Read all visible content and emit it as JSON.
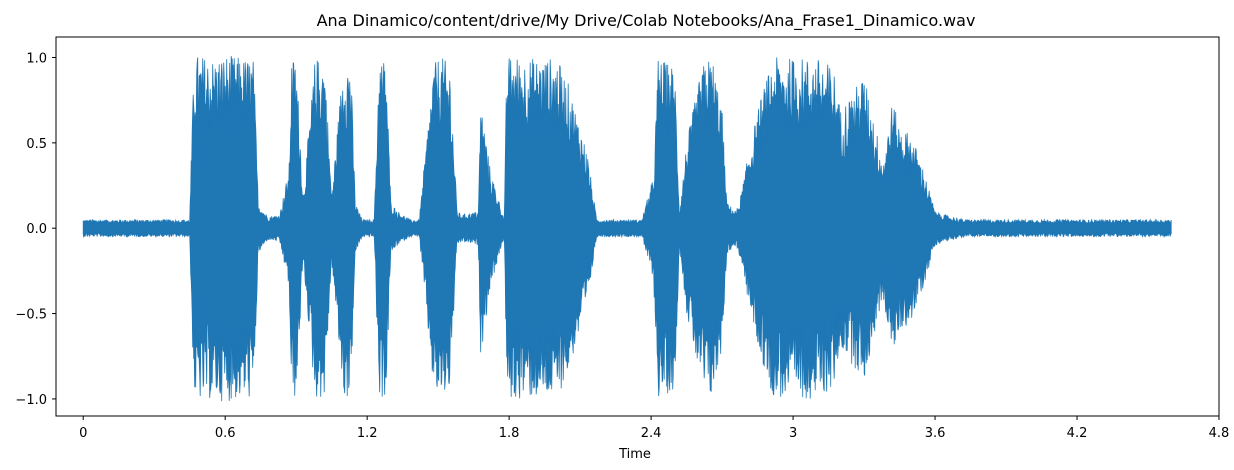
{
  "chart_data": {
    "type": "line",
    "title": "Ana Dinamico/content/drive/My Drive/Colab Notebooks/Ana_Frase1_Dinamico.wav",
    "xlabel": "Time",
    "ylabel": "",
    "xlim": [
      -0.115,
      4.8
    ],
    "ylim": [
      -1.1,
      1.12
    ],
    "xticks": [
      0,
      0.6,
      1.2,
      1.8,
      2.4,
      3,
      3.6,
      4.2,
      4.8
    ],
    "xtick_labels": [
      "0",
      "0.6",
      "1.2",
      "1.8",
      "2.4",
      "3",
      "3.6",
      "4.2",
      "4.8"
    ],
    "yticks": [
      -1.0,
      -0.5,
      0.0,
      0.5,
      1.0
    ],
    "ytick_labels": [
      "−1.0",
      "−0.5",
      "0.0",
      "0.5",
      "1.0"
    ],
    "grid": false,
    "series": [
      {
        "color": "#1f77b4",
        "envelope": {
          "x": [
            0.0,
            0.3,
            0.45,
            0.46,
            0.47,
            0.48,
            0.55,
            0.6,
            0.68,
            0.72,
            0.74,
            0.78,
            0.83,
            0.87,
            0.88,
            0.9,
            0.93,
            0.98,
            1.0,
            1.02,
            1.05,
            1.1,
            1.13,
            1.15,
            1.18,
            1.2,
            1.23,
            1.25,
            1.28,
            1.3,
            1.33,
            1.35,
            1.38,
            1.42,
            1.48,
            1.5,
            1.52,
            1.55,
            1.58,
            1.6,
            1.67,
            1.68,
            1.72,
            1.78,
            1.79,
            1.82,
            1.85,
            1.92,
            1.97,
            2.0,
            2.05,
            2.1,
            2.13,
            2.17,
            2.2,
            2.3,
            2.36,
            2.41,
            2.43,
            2.5,
            2.52,
            2.55,
            2.6,
            2.63,
            2.66,
            2.7,
            2.72,
            2.76,
            2.78,
            2.82,
            2.87,
            2.92,
            2.97,
            3.0,
            3.02,
            3.05,
            3.1,
            3.17,
            3.2,
            3.25,
            3.3,
            3.38,
            3.42,
            3.45,
            3.5,
            3.55,
            3.6,
            3.66,
            3.73,
            3.85,
            4.0,
            4.2,
            4.4,
            4.6
          ],
          "max": [
            0.05,
            0.05,
            0.05,
            0.6,
            1.0,
            1.02,
            1.0,
            1.02,
            1.0,
            1.0,
            0.15,
            0.07,
            0.08,
            0.35,
            1.0,
            1.0,
            0.2,
            1.0,
            1.0,
            1.0,
            0.2,
            1.0,
            1.0,
            0.15,
            0.05,
            0.05,
            0.05,
            1.0,
            1.0,
            0.15,
            0.1,
            0.08,
            0.05,
            0.05,
            0.95,
            1.0,
            1.0,
            0.95,
            0.1,
            0.08,
            0.1,
            0.75,
            0.35,
            0.05,
            1.0,
            1.02,
            1.0,
            1.0,
            1.0,
            1.0,
            0.85,
            0.6,
            0.45,
            0.05,
            0.05,
            0.05,
            0.05,
            0.3,
            1.0,
            0.95,
            0.1,
            0.5,
            0.85,
            1.0,
            1.0,
            0.7,
            0.15,
            0.1,
            0.2,
            0.5,
            0.8,
            1.0,
            1.0,
            1.0,
            1.0,
            1.0,
            1.0,
            0.95,
            0.7,
            0.8,
            0.9,
            0.4,
            0.75,
            0.6,
            0.55,
            0.35,
            0.1,
            0.07,
            0.05,
            0.05,
            0.05,
            0.05,
            0.05,
            0.05
          ],
          "min": [
            -0.05,
            -0.05,
            -0.05,
            -0.6,
            -1.0,
            -1.02,
            -1.0,
            -1.02,
            -1.0,
            -1.0,
            -0.15,
            -0.07,
            -0.08,
            -0.35,
            -1.0,
            -1.0,
            -0.2,
            -1.0,
            -1.0,
            -1.0,
            -0.2,
            -1.0,
            -1.0,
            -0.15,
            -0.05,
            -0.05,
            -0.05,
            -1.0,
            -1.0,
            -0.15,
            -0.1,
            -0.08,
            -0.05,
            -0.05,
            -0.95,
            -1.0,
            -1.0,
            -0.95,
            -0.1,
            -0.08,
            -0.1,
            -0.75,
            -0.35,
            -0.05,
            -1.0,
            -1.02,
            -1.0,
            -1.0,
            -1.0,
            -1.0,
            -0.85,
            -0.6,
            -0.45,
            -0.05,
            -0.05,
            -0.05,
            -0.05,
            -0.3,
            -1.0,
            -0.95,
            -0.1,
            -0.5,
            -0.85,
            -1.0,
            -1.0,
            -0.7,
            -0.15,
            -0.1,
            -0.2,
            -0.5,
            -0.8,
            -1.0,
            -1.0,
            -1.0,
            -1.0,
            -1.0,
            -1.0,
            -0.95,
            -0.7,
            -0.8,
            -0.9,
            -0.4,
            -0.75,
            -0.6,
            -0.55,
            -0.35,
            -0.1,
            -0.07,
            -0.05,
            -0.05,
            -0.05,
            -0.05,
            -0.05,
            -0.05
          ]
        }
      }
    ]
  }
}
